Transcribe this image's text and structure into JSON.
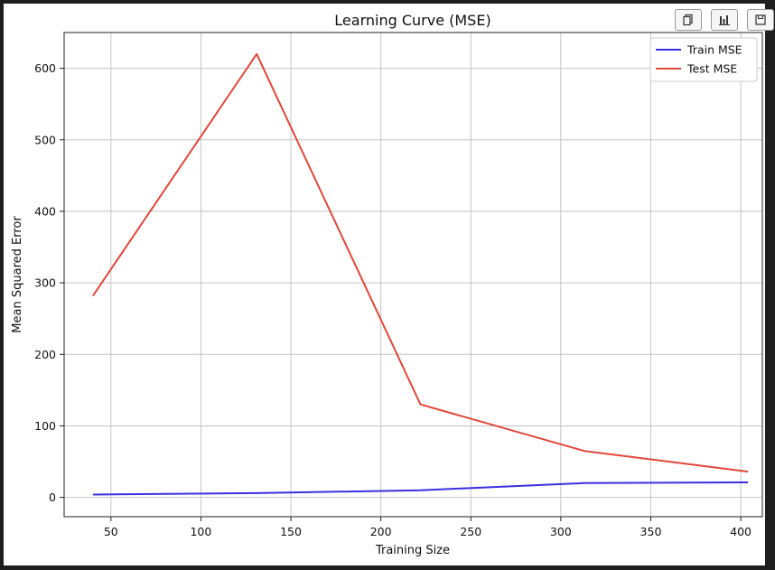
{
  "toolbar": {
    "buttons": [
      {
        "icon": "copy-icon"
      },
      {
        "icon": "bar-chart-icon"
      },
      {
        "icon": "save-icon"
      }
    ]
  },
  "chart_data": {
    "type": "line",
    "title": "Learning Curve (MSE)",
    "xlabel": "Training Size",
    "ylabel": "Mean Squared Error",
    "xlim": [
      24,
      412
    ],
    "ylim": [
      -27,
      650
    ],
    "xticks": [
      50,
      100,
      150,
      200,
      250,
      300,
      350,
      400
    ],
    "yticks": [
      0,
      100,
      200,
      300,
      400,
      500,
      600
    ],
    "grid": true,
    "legend_position": "top-right",
    "series": [
      {
        "name": "Train MSE",
        "color": "#3b2fe0",
        "x": [
          40,
          131,
          222,
          313,
          404
        ],
        "y": [
          4,
          6,
          10,
          20,
          21
        ]
      },
      {
        "name": "Test MSE",
        "color": "#e0473b",
        "x": [
          40,
          131,
          222,
          313,
          404
        ],
        "y": [
          282,
          620,
          130,
          65,
          36
        ]
      }
    ]
  }
}
